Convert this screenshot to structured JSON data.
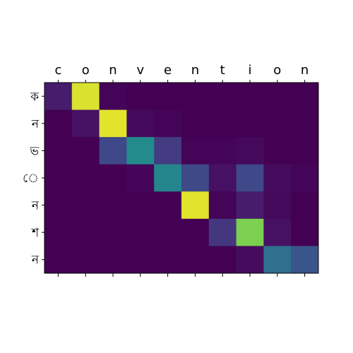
{
  "chart_data": {
    "type": "heatmap",
    "colormap": "viridis",
    "x_labels": [
      "c",
      "o",
      "n",
      "v",
      "e",
      "n",
      "t",
      "i",
      "o",
      "n"
    ],
    "y_labels": [
      "ক",
      "ন",
      "ভ",
      "ে",
      "ন",
      "শ",
      "ন"
    ],
    "x_label_position": "top",
    "grid": false,
    "values": [
      [
        0.1,
        0.96,
        0.01,
        0.0,
        0.0,
        0.0,
        0.0,
        0.0,
        0.0,
        0.0
      ],
      [
        0.0,
        0.06,
        0.97,
        0.03,
        0.01,
        0.0,
        0.0,
        0.0,
        0.0,
        0.0
      ],
      [
        0.0,
        0.0,
        0.27,
        0.6,
        0.22,
        0.01,
        0.01,
        0.03,
        0.0,
        0.0
      ],
      [
        0.0,
        0.0,
        0.0,
        0.02,
        0.57,
        0.28,
        0.06,
        0.27,
        0.04,
        0.01
      ],
      [
        0.0,
        0.0,
        0.0,
        0.0,
        0.0,
        0.97,
        0.01,
        0.1,
        0.03,
        0.0
      ],
      [
        0.0,
        0.0,
        0.0,
        0.0,
        0.0,
        0.0,
        0.2,
        0.85,
        0.06,
        0.0
      ],
      [
        0.0,
        0.0,
        0.0,
        0.0,
        0.0,
        0.0,
        0.0,
        0.04,
        0.46,
        0.33
      ]
    ]
  }
}
